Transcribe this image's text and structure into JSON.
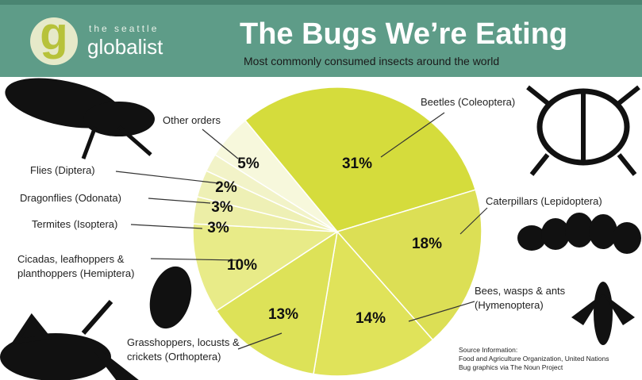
{
  "logo": {
    "letter": "g",
    "tagline": "the seattle",
    "name": "globalist"
  },
  "chart_data": {
    "type": "pie",
    "title": "The Bugs We’re Eating",
    "subtitle": "Most commonly consumed insects around the world",
    "categories": [
      "Beetles (Coleoptera)",
      "Caterpillars (Lepidoptera)",
      "Bees, wasps & ants (Hymenoptera)",
      "Grasshoppers, locusts & crickets (Orthoptera)",
      "Cicadas, leafhoppers & planthoppers (Hemiptera)",
      "Termites (Isoptera)",
      "Dragonflies (Odonata)",
      "Flies (Diptera)",
      "Other orders"
    ],
    "values": [
      31,
      18,
      14,
      13,
      10,
      3,
      3,
      2,
      5
    ],
    "value_labels": [
      "31%",
      "18%",
      "14%",
      "13%",
      "10%",
      "3%",
      "3%",
      "2%",
      "5%"
    ],
    "colors": [
      "#d5dc3c",
      "#dcdf55",
      "#e0e35a",
      "#dde258",
      "#e8eb88",
      "#eceea6",
      "#eef0b5",
      "#f2f3c8",
      "#f7f8dc"
    ],
    "source": [
      "Source Information:",
      "Food and Agriculture Organization, United Nations",
      "Bug graphics via The Noun Project"
    ]
  }
}
